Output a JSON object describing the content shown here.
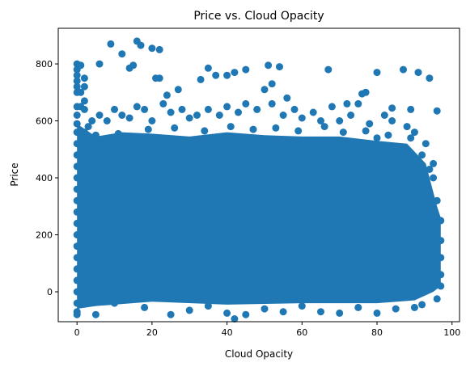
{
  "chart_data": {
    "type": "scatter",
    "title": "Price vs. Cloud Opacity",
    "xlabel": "Cloud Opacity",
    "ylabel": "Price",
    "xlim": [
      -5,
      102
    ],
    "ylim": [
      -105,
      925
    ],
    "x_ticks": [
      0,
      20,
      40,
      60,
      80,
      100
    ],
    "y_ticks": [
      0,
      200,
      400,
      600,
      800
    ],
    "grid": false,
    "legend": "none",
    "marker_color": "#1f77b4",
    "series": [
      {
        "points": [
          [
            0,
            800
          ],
          [
            0,
            780
          ],
          [
            0,
            760
          ],
          [
            0,
            740
          ],
          [
            0,
            720
          ],
          [
            0,
            700
          ],
          [
            0,
            650
          ],
          [
            0,
            620
          ],
          [
            0,
            590
          ],
          [
            0,
            560
          ],
          [
            0,
            520
          ],
          [
            0,
            480
          ],
          [
            0,
            440
          ],
          [
            0,
            400
          ],
          [
            0,
            360
          ],
          [
            0,
            320
          ],
          [
            0,
            280
          ],
          [
            0,
            240
          ],
          [
            0,
            200
          ],
          [
            0,
            160
          ],
          [
            0,
            120
          ],
          [
            0,
            80
          ],
          [
            0,
            40
          ],
          [
            0,
            0
          ],
          [
            0,
            -40
          ],
          [
            0,
            -70
          ],
          [
            0,
            -80
          ],
          [
            1,
            795
          ],
          [
            1,
            700
          ],
          [
            2,
            750
          ],
          [
            2,
            720
          ],
          [
            2,
            670
          ],
          [
            1,
            650
          ],
          [
            2,
            640
          ],
          [
            6,
            800
          ],
          [
            9,
            870
          ],
          [
            12,
            835
          ],
          [
            14,
            785
          ],
          [
            15,
            795
          ],
          [
            16,
            880
          ],
          [
            17,
            865
          ],
          [
            20,
            855
          ],
          [
            21,
            750
          ],
          [
            22,
            850
          ],
          [
            22,
            750
          ],
          [
            24,
            690
          ],
          [
            27,
            710
          ],
          [
            33,
            745
          ],
          [
            35,
            785
          ],
          [
            37,
            760
          ],
          [
            40,
            760
          ],
          [
            42,
            770
          ],
          [
            45,
            780
          ],
          [
            50,
            710
          ],
          [
            51,
            795
          ],
          [
            52,
            730
          ],
          [
            54,
            790
          ],
          [
            56,
            680
          ],
          [
            67,
            780
          ],
          [
            72,
            660
          ],
          [
            76,
            695
          ],
          [
            77,
            700
          ],
          [
            80,
            770
          ],
          [
            84,
            645
          ],
          [
            87,
            780
          ],
          [
            89,
            640
          ],
          [
            91,
            770
          ],
          [
            94,
            750
          ],
          [
            96,
            635
          ],
          [
            5,
            -80
          ],
          [
            10,
            -40
          ],
          [
            18,
            -55
          ],
          [
            25,
            -80
          ],
          [
            30,
            -65
          ],
          [
            35,
            -50
          ],
          [
            40,
            -75
          ],
          [
            42,
            -95
          ],
          [
            45,
            -80
          ],
          [
            50,
            -60
          ],
          [
            55,
            -70
          ],
          [
            60,
            -50
          ],
          [
            65,
            -70
          ],
          [
            70,
            -75
          ],
          [
            75,
            -55
          ],
          [
            80,
            -75
          ],
          [
            85,
            -60
          ],
          [
            90,
            -55
          ],
          [
            92,
            -45
          ],
          [
            96,
            -25
          ],
          [
            97,
            250
          ],
          [
            97,
            180
          ],
          [
            97,
            120
          ],
          [
            97,
            60
          ],
          [
            97,
            20
          ],
          [
            96,
            320
          ],
          [
            95,
            400
          ],
          [
            95,
            450
          ],
          [
            94,
            200
          ],
          [
            93,
            520
          ],
          [
            93,
            100
          ],
          [
            92,
            480
          ],
          [
            91,
            330
          ],
          [
            90,
            560
          ],
          [
            88,
            580
          ],
          [
            86,
            500
          ],
          [
            84,
            600
          ],
          [
            82,
            620
          ],
          [
            80,
            540
          ],
          [
            78,
            590
          ],
          [
            75,
            660
          ],
          [
            73,
            620
          ],
          [
            70,
            600
          ],
          [
            68,
            650
          ],
          [
            65,
            600
          ],
          [
            63,
            630
          ],
          [
            60,
            610
          ],
          [
            58,
            640
          ],
          [
            55,
            620
          ],
          [
            52,
            660
          ],
          [
            48,
            640
          ],
          [
            45,
            660
          ],
          [
            43,
            630
          ],
          [
            40,
            650
          ],
          [
            38,
            620
          ],
          [
            35,
            640
          ],
          [
            32,
            620
          ],
          [
            30,
            610
          ],
          [
            28,
            640
          ],
          [
            25,
            630
          ],
          [
            23,
            660
          ],
          [
            20,
            600
          ],
          [
            18,
            640
          ],
          [
            16,
            650
          ],
          [
            14,
            610
          ],
          [
            12,
            620
          ],
          [
            10,
            640
          ],
          [
            8,
            600
          ],
          [
            6,
            620
          ],
          [
            4,
            600
          ],
          [
            3,
            580
          ],
          [
            2,
            560
          ],
          [
            5,
            550
          ],
          [
            11,
            555
          ],
          [
            19,
            570
          ],
          [
            26,
            575
          ],
          [
            34,
            565
          ],
          [
            41,
            580
          ],
          [
            47,
            570
          ],
          [
            53,
            575
          ],
          [
            59,
            565
          ],
          [
            66,
            580
          ],
          [
            71,
            560
          ],
          [
            77,
            565
          ],
          [
            83,
            550
          ],
          [
            89,
            540
          ],
          [
            94,
            430
          ]
        ]
      }
    ]
  }
}
